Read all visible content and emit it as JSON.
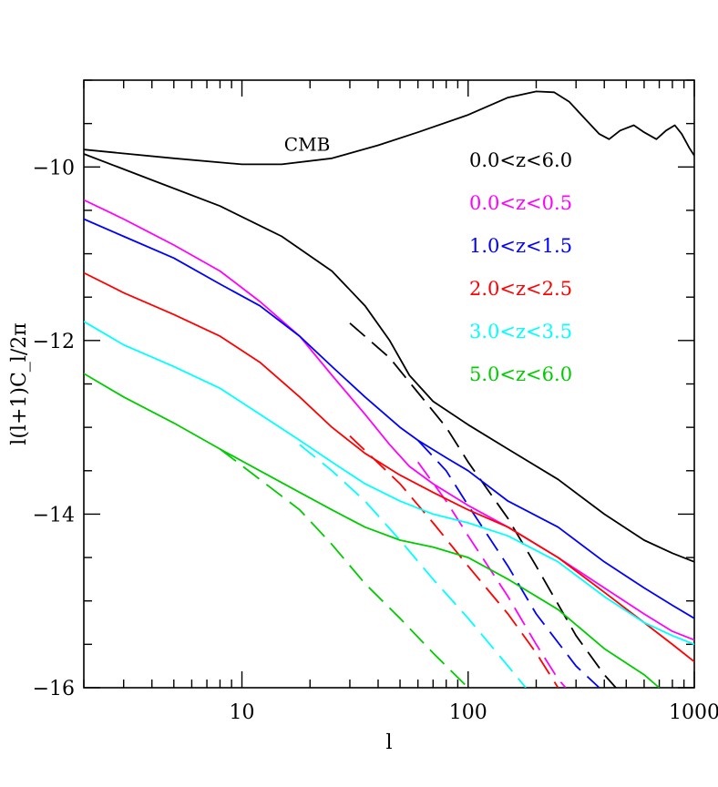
{
  "chart_data": {
    "type": "line",
    "title": "",
    "xlabel": "l",
    "ylabel": "l(l+1)C_l/2π",
    "xscale": "log",
    "xlim": [
      2,
      1000
    ],
    "ylim": [
      -16,
      -9
    ],
    "grid": false,
    "legend_position": "top-right",
    "x_ticks": [
      {
        "value": 10,
        "label": "10"
      },
      {
        "value": 100,
        "label": "100"
      },
      {
        "value": 1000,
        "label": "1000"
      }
    ],
    "y_ticks": [
      {
        "value": -10,
        "label": "−10"
      },
      {
        "value": -12,
        "label": "−12"
      },
      {
        "value": -14,
        "label": "−14"
      },
      {
        "value": -16,
        "label": "−16"
      }
    ],
    "annotations": [
      {
        "text": "CMB",
        "x": 14,
        "y": -9.75
      }
    ],
    "legend": [
      {
        "label": "0.0<z<6.0",
        "color": "#000000"
      },
      {
        "label": "0.0<z<0.5",
        "color": "#ff00ff"
      },
      {
        "label": "1.0<z<1.5",
        "color": "#0000ff"
      },
      {
        "label": "2.0<z<2.5",
        "color": "#ff0000"
      },
      {
        "label": "3.0<z<3.5",
        "color": "#00ffff"
      },
      {
        "label": "5.0<z<6.0",
        "color": "#00cc00"
      }
    ],
    "series": [
      {
        "color": "#000000",
        "style": "solid",
        "points": [
          [
            2,
            -9.8
          ],
          [
            5,
            -9.9
          ],
          [
            10,
            -9.97
          ],
          [
            15,
            -9.97
          ],
          [
            25,
            -9.9
          ],
          [
            40,
            -9.75
          ],
          [
            60,
            -9.6
          ],
          [
            100,
            -9.4
          ],
          [
            150,
            -9.2
          ],
          [
            200,
            -9.13
          ],
          [
            240,
            -9.14
          ],
          [
            280,
            -9.25
          ],
          [
            330,
            -9.45
          ],
          [
            380,
            -9.62
          ],
          [
            420,
            -9.68
          ],
          [
            470,
            -9.58
          ],
          [
            540,
            -9.52
          ],
          [
            600,
            -9.6
          ],
          [
            680,
            -9.68
          ],
          [
            750,
            -9.58
          ],
          [
            820,
            -9.52
          ],
          [
            880,
            -9.62
          ],
          [
            950,
            -9.78
          ],
          [
            1000,
            -9.87
          ]
        ]
      },
      {
        "color": "#000000",
        "style": "solid",
        "points": [
          [
            2,
            -9.85
          ],
          [
            4,
            -10.15
          ],
          [
            8,
            -10.45
          ],
          [
            15,
            -10.8
          ],
          [
            25,
            -11.2
          ],
          [
            35,
            -11.6
          ],
          [
            45,
            -12.0
          ],
          [
            55,
            -12.4
          ],
          [
            70,
            -12.7
          ],
          [
            100,
            -12.97
          ],
          [
            150,
            -13.25
          ],
          [
            250,
            -13.6
          ],
          [
            400,
            -14.0
          ],
          [
            600,
            -14.3
          ],
          [
            800,
            -14.45
          ],
          [
            1000,
            -14.55
          ]
        ]
      },
      {
        "color": "#000000",
        "style": "dashed",
        "points": [
          [
            30,
            -11.8
          ],
          [
            45,
            -12.2
          ],
          [
            60,
            -12.6
          ],
          [
            80,
            -13.0
          ],
          [
            100,
            -13.4
          ],
          [
            150,
            -14.05
          ],
          [
            200,
            -14.6
          ],
          [
            300,
            -15.4
          ],
          [
            400,
            -15.85
          ],
          [
            450,
            -16.0
          ]
        ]
      },
      {
        "color": "#ff00ff",
        "style": "solid",
        "points": [
          [
            2,
            -10.38
          ],
          [
            3,
            -10.6
          ],
          [
            5,
            -10.9
          ],
          [
            8,
            -11.2
          ],
          [
            12,
            -11.55
          ],
          [
            18,
            -11.95
          ],
          [
            25,
            -12.4
          ],
          [
            35,
            -12.85
          ],
          [
            45,
            -13.2
          ],
          [
            55,
            -13.45
          ],
          [
            70,
            -13.65
          ],
          [
            100,
            -13.9
          ],
          [
            150,
            -14.15
          ],
          [
            250,
            -14.5
          ],
          [
            400,
            -14.85
          ],
          [
            600,
            -15.15
          ],
          [
            800,
            -15.35
          ],
          [
            1000,
            -15.45
          ]
        ]
      },
      {
        "color": "#ff00ff",
        "style": "dashed",
        "points": [
          [
            60,
            -13.4
          ],
          [
            80,
            -13.85
          ],
          [
            100,
            -14.25
          ],
          [
            150,
            -14.95
          ],
          [
            200,
            -15.5
          ],
          [
            250,
            -15.9
          ],
          [
            270,
            -16.0
          ]
        ]
      },
      {
        "color": "#0000ff",
        "style": "solid",
        "points": [
          [
            2,
            -10.6
          ],
          [
            3,
            -10.8
          ],
          [
            5,
            -11.05
          ],
          [
            8,
            -11.35
          ],
          [
            12,
            -11.6
          ],
          [
            18,
            -11.95
          ],
          [
            25,
            -12.3
          ],
          [
            35,
            -12.65
          ],
          [
            50,
            -13.0
          ],
          [
            60,
            -13.15
          ],
          [
            80,
            -13.35
          ],
          [
            100,
            -13.5
          ],
          [
            150,
            -13.85
          ],
          [
            250,
            -14.15
          ],
          [
            400,
            -14.55
          ],
          [
            600,
            -14.85
          ],
          [
            800,
            -15.05
          ],
          [
            1000,
            -15.2
          ]
        ]
      },
      {
        "color": "#0000ff",
        "style": "dashed",
        "points": [
          [
            60,
            -13.15
          ],
          [
            80,
            -13.5
          ],
          [
            100,
            -13.9
          ],
          [
            150,
            -14.6
          ],
          [
            200,
            -15.15
          ],
          [
            300,
            -15.75
          ],
          [
            380,
            -16.0
          ]
        ]
      },
      {
        "color": "#ff0000",
        "style": "solid",
        "points": [
          [
            2,
            -11.22
          ],
          [
            3,
            -11.45
          ],
          [
            5,
            -11.7
          ],
          [
            8,
            -11.95
          ],
          [
            12,
            -12.25
          ],
          [
            18,
            -12.65
          ],
          [
            25,
            -13.0
          ],
          [
            35,
            -13.3
          ],
          [
            50,
            -13.55
          ],
          [
            70,
            -13.75
          ],
          [
            100,
            -13.95
          ],
          [
            150,
            -14.15
          ],
          [
            250,
            -14.5
          ],
          [
            400,
            -14.9
          ],
          [
            600,
            -15.25
          ],
          [
            800,
            -15.5
          ],
          [
            1000,
            -15.7
          ]
        ]
      },
      {
        "color": "#ff0000",
        "style": "dashed",
        "points": [
          [
            30,
            -13.1
          ],
          [
            50,
            -13.65
          ],
          [
            70,
            -14.1
          ],
          [
            100,
            -14.6
          ],
          [
            150,
            -15.15
          ],
          [
            200,
            -15.6
          ],
          [
            250,
            -16.0
          ]
        ]
      },
      {
        "color": "#00ffff",
        "style": "solid",
        "points": [
          [
            2,
            -11.78
          ],
          [
            3,
            -12.05
          ],
          [
            5,
            -12.3
          ],
          [
            8,
            -12.55
          ],
          [
            12,
            -12.85
          ],
          [
            18,
            -13.15
          ],
          [
            25,
            -13.4
          ],
          [
            35,
            -13.65
          ],
          [
            50,
            -13.85
          ],
          [
            70,
            -14.0
          ],
          [
            100,
            -14.1
          ],
          [
            150,
            -14.25
          ],
          [
            250,
            -14.55
          ],
          [
            400,
            -14.95
          ],
          [
            600,
            -15.25
          ],
          [
            800,
            -15.4
          ],
          [
            1000,
            -15.5
          ]
        ]
      },
      {
        "color": "#00ffff",
        "style": "dashed",
        "points": [
          [
            18,
            -13.2
          ],
          [
            25,
            -13.5
          ],
          [
            35,
            -13.85
          ],
          [
            50,
            -14.3
          ],
          [
            70,
            -14.75
          ],
          [
            100,
            -15.2
          ],
          [
            150,
            -15.75
          ],
          [
            180,
            -16.0
          ]
        ]
      },
      {
        "color": "#00cc00",
        "style": "solid",
        "points": [
          [
            2,
            -12.38
          ],
          [
            3,
            -12.65
          ],
          [
            5,
            -12.95
          ],
          [
            8,
            -13.25
          ],
          [
            12,
            -13.5
          ],
          [
            18,
            -13.75
          ],
          [
            25,
            -13.95
          ],
          [
            35,
            -14.15
          ],
          [
            50,
            -14.3
          ],
          [
            70,
            -14.38
          ],
          [
            100,
            -14.5
          ],
          [
            150,
            -14.75
          ],
          [
            250,
            -15.1
          ],
          [
            400,
            -15.55
          ],
          [
            600,
            -15.85
          ],
          [
            700,
            -16.0
          ]
        ]
      },
      {
        "color": "#00cc00",
        "style": "dashed",
        "points": [
          [
            8,
            -13.25
          ],
          [
            12,
            -13.6
          ],
          [
            18,
            -13.95
          ],
          [
            25,
            -14.35
          ],
          [
            35,
            -14.8
          ],
          [
            50,
            -15.2
          ],
          [
            70,
            -15.6
          ],
          [
            100,
            -16.0
          ]
        ]
      }
    ]
  }
}
